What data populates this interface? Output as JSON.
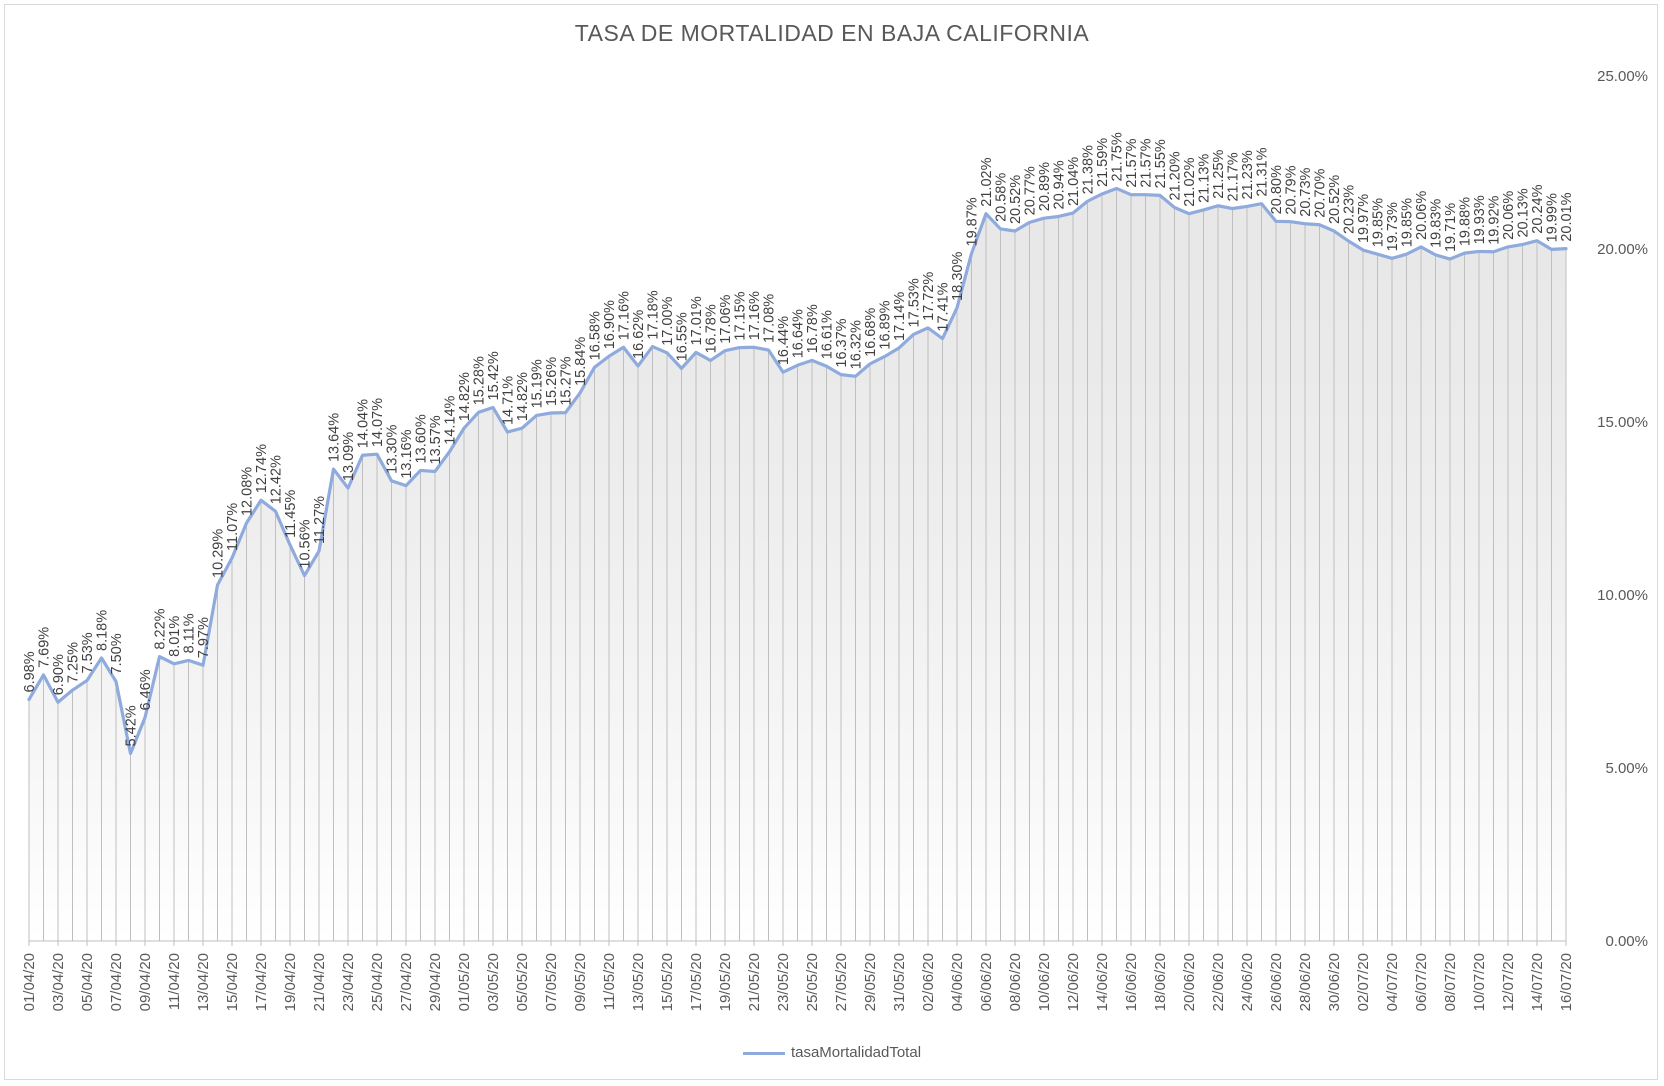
{
  "chart_data": {
    "type": "area",
    "title": "TASA DE MORTALIDAD EN BAJA CALIFORNIA",
    "xlabel": "",
    "ylabel": "",
    "ylim": [
      0,
      25
    ],
    "y_ticks": [
      "0.00%",
      "5.00%",
      "10.00%",
      "15.00%",
      "20.00%",
      "25.00%"
    ],
    "y_axis_position": "right",
    "grid": false,
    "legend": {
      "position": "bottom",
      "entries": [
        "tasaMortalidadTotal"
      ]
    },
    "series_color": "#8faadc",
    "x_tick_labels": [
      "01/04/20",
      "03/04/20",
      "05/04/20",
      "07/04/20",
      "09/04/20",
      "11/04/20",
      "13/04/20",
      "15/04/20",
      "17/04/20",
      "19/04/20",
      "21/04/20",
      "23/04/20",
      "25/04/20",
      "27/04/20",
      "29/04/20",
      "01/05/20",
      "03/05/20",
      "05/05/20",
      "07/05/20",
      "09/05/20",
      "11/05/20",
      "13/05/20",
      "15/05/20",
      "17/05/20",
      "19/05/20",
      "21/05/20",
      "23/05/20",
      "25/05/20",
      "27/05/20",
      "29/05/20",
      "31/05/20",
      "02/06/20",
      "04/06/20",
      "06/06/20",
      "08/06/20",
      "10/06/20",
      "12/06/20",
      "14/06/20",
      "16/06/20",
      "18/06/20",
      "20/06/20",
      "22/06/20",
      "24/06/20",
      "26/06/20",
      "28/06/20",
      "30/06/20",
      "02/07/20",
      "04/07/20",
      "06/07/20",
      "08/07/20",
      "10/07/20",
      "12/07/20",
      "14/07/20",
      "16/07/20"
    ],
    "series": [
      {
        "name": "tasaMortalidadTotal",
        "values": [
          6.98,
          7.69,
          6.9,
          7.25,
          7.53,
          8.18,
          7.5,
          5.42,
          6.46,
          8.22,
          8.01,
          8.11,
          7.97,
          10.29,
          11.07,
          12.08,
          12.74,
          12.42,
          11.45,
          10.56,
          11.27,
          13.64,
          13.09,
          14.04,
          14.07,
          13.3,
          13.16,
          13.6,
          13.57,
          14.14,
          14.82,
          15.28,
          15.42,
          14.71,
          14.82,
          15.19,
          15.26,
          15.27,
          15.84,
          16.58,
          16.9,
          17.16,
          16.62,
          17.18,
          17.0,
          16.55,
          17.01,
          16.78,
          17.06,
          17.15,
          17.16,
          17.08,
          16.44,
          16.64,
          16.78,
          16.61,
          16.37,
          16.32,
          16.68,
          16.89,
          17.14,
          17.53,
          17.72,
          17.41,
          18.3,
          19.87,
          21.02,
          20.58,
          20.52,
          20.77,
          20.89,
          20.94,
          21.04,
          21.38,
          21.59,
          21.75,
          21.57,
          21.57,
          21.55,
          21.2,
          21.02,
          21.13,
          21.25,
          21.17,
          21.23,
          21.31,
          20.8,
          20.79,
          20.73,
          20.7,
          20.52,
          20.23,
          19.97,
          19.85,
          19.73,
          19.85,
          20.06,
          19.83,
          19.71,
          19.88,
          19.93,
          19.92,
          20.06,
          20.13,
          20.24,
          19.99,
          20.01
        ]
      }
    ],
    "data_labels": [
      "6.98%",
      "7.69%",
      "6.90%",
      "7.25%",
      "7.53%",
      "8.18%",
      "7.50%",
      "5.42%",
      "6.46%",
      "8.22%",
      "8.01%",
      "8.11%",
      "7.97%",
      "10.29%",
      "11.07%",
      "12.08%",
      "12.74%",
      "12.42%",
      "11.45%",
      "10.56%",
      "11.27%",
      "13.64%",
      "13.09%",
      "14.04%",
      "14.07%",
      "13.30%",
      "13.16%",
      "13.60%",
      "13.57%",
      "14.14%",
      "14.82%",
      "15.28%",
      "15.42%",
      "14.71%",
      "14.82%",
      "15.19%",
      "15.26%",
      "15.27%",
      "15.84%",
      "16.58%",
      "16.90%",
      "17.16%",
      "16.62%",
      "17.18%",
      "17.00%",
      "16.55%",
      "17.01%",
      "16.78%",
      "17.06%",
      "17.15%",
      "17.16%",
      "17.08%",
      "16.44%",
      "16.64%",
      "16.78%",
      "16.61%",
      "16.37%",
      "16.32%",
      "16.68%",
      "16.89%",
      "17.14%",
      "17.53%",
      "17.72%",
      "17.41%",
      "18.30%",
      "19.87%",
      "21.02%",
      "20.58%",
      "20.52%",
      "20.77%",
      "20.89%",
      "20.94%",
      "21.04%",
      "21.38%",
      "21.59%",
      "21.75%",
      "21.57%",
      "21.57%",
      "21.55%",
      "21.20%",
      "21.02%",
      "21.13%",
      "21.25%",
      "21.17%",
      "21.23%",
      "21.31%",
      "20.80%",
      "20.79%",
      "20.73%",
      "20.70%",
      "20.52%",
      "20.23%",
      "19.97%",
      "19.85%",
      "19.73%",
      "19.85%",
      "20.06%",
      "19.83%",
      "19.71%",
      "19.88%",
      "19.93%",
      "19.92%",
      "20.06%",
      "20.13%",
      "20.24%",
      "19.99%",
      "20.01%"
    ]
  }
}
